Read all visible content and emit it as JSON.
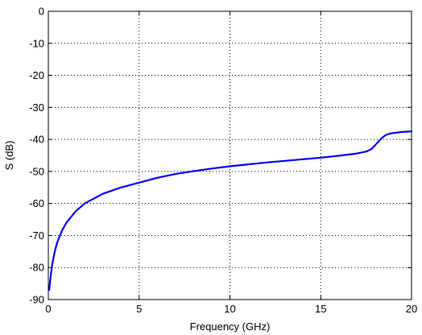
{
  "chart_data": {
    "type": "line",
    "title": "",
    "xlabel": "Frequency (GHz)",
    "ylabel": "S (dB)",
    "xlim": [
      0,
      20
    ],
    "ylim": [
      -90,
      0
    ],
    "x_ticks": [
      0,
      5,
      10,
      15,
      20
    ],
    "y_ticks": [
      0,
      -10,
      -20,
      -30,
      -40,
      -50,
      -60,
      -70,
      -80,
      -90
    ],
    "grid": true,
    "grid_style": "dotted",
    "legend": "none",
    "series": [
      {
        "color": "#0000ff",
        "x": [
          0.05,
          0.1,
          0.2,
          0.3,
          0.4,
          0.5,
          0.75,
          1.0,
          1.5,
          2.0,
          3.0,
          4.0,
          5.0,
          6.0,
          7.0,
          8.0,
          9.0,
          10.0,
          11.0,
          12.0,
          13.0,
          14.0,
          15.0,
          16.0,
          17.0,
          17.5,
          17.8,
          18.0,
          18.2,
          18.4,
          18.6,
          18.8,
          19.0,
          19.3,
          19.6,
          20.0
        ],
        "y": [
          -87,
          -84,
          -79.5,
          -76.5,
          -74,
          -72,
          -68.5,
          -66,
          -62.5,
          -60,
          -57,
          -55,
          -53.5,
          -52,
          -50.8,
          -49.9,
          -49.1,
          -48.4,
          -47.8,
          -47.2,
          -46.7,
          -46.2,
          -45.7,
          -45.1,
          -44.4,
          -43.8,
          -43.0,
          -41.8,
          -40.5,
          -39.4,
          -38.6,
          -38.2,
          -38.0,
          -37.8,
          -37.6,
          -37.5
        ]
      }
    ]
  }
}
